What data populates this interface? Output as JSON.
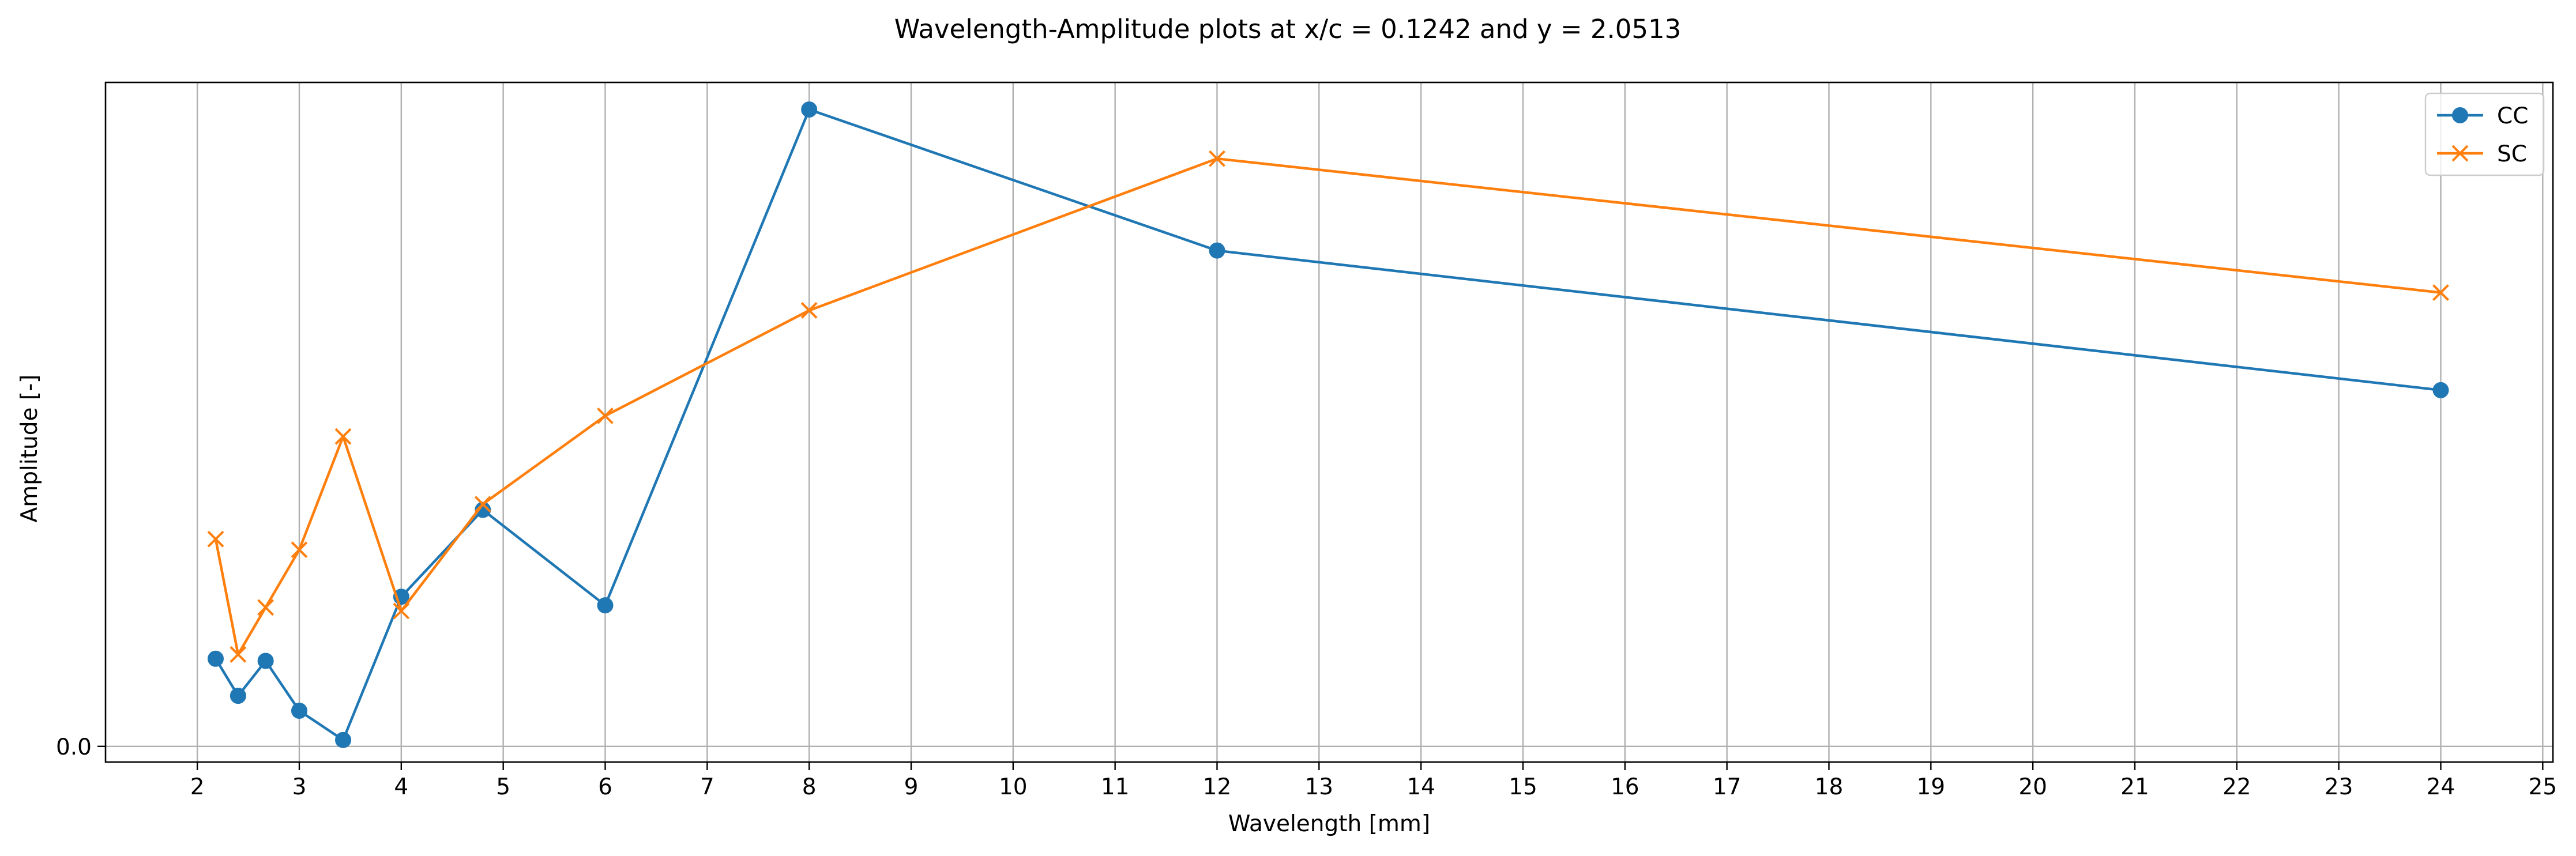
{
  "chart_data": {
    "type": "line",
    "title": "Wavelength-Amplitude plots at x/c = 0.1242 and y = 2.0513",
    "xlabel": "Wavelength [mm]",
    "ylabel": "Amplitude [-]",
    "xlim": [
      1.1,
      25.1
    ],
    "ylim": [
      -0.22,
      9.32
    ],
    "xticks": [
      2,
      3,
      4,
      5,
      6,
      7,
      8,
      9,
      10,
      11,
      12,
      13,
      14,
      15,
      16,
      17,
      18,
      19,
      20,
      21,
      22,
      23,
      24,
      25
    ],
    "xtick_labels": [
      "2",
      "3",
      "4",
      "5",
      "6",
      "7",
      "8",
      "9",
      "10",
      "11",
      "12",
      "13",
      "14",
      "15",
      "16",
      "17",
      "18",
      "19",
      "20",
      "21",
      "22",
      "23",
      "24",
      "25"
    ],
    "yticks": [
      0.0
    ],
    "ytick_labels": [
      "0.0"
    ],
    "grid": "vertical",
    "legend_position": "top-right",
    "x": [
      2.18,
      2.4,
      2.67,
      3.0,
      3.43,
      4.0,
      4.8,
      6.0,
      8.0,
      12.0,
      24.0
    ],
    "series": [
      {
        "name": "CC",
        "color": "#1f77b4",
        "marker": "circle",
        "values": [
          1.23,
          0.71,
          1.2,
          0.5,
          0.09,
          2.1,
          3.32,
          1.98,
          8.94,
          6.96,
          5.0
        ]
      },
      {
        "name": "SC",
        "color": "#ff7f0e",
        "marker": "x",
        "values": [
          2.91,
          1.29,
          1.95,
          2.76,
          4.35,
          1.9,
          3.4,
          4.64,
          6.12,
          8.25,
          6.37
        ]
      }
    ]
  }
}
